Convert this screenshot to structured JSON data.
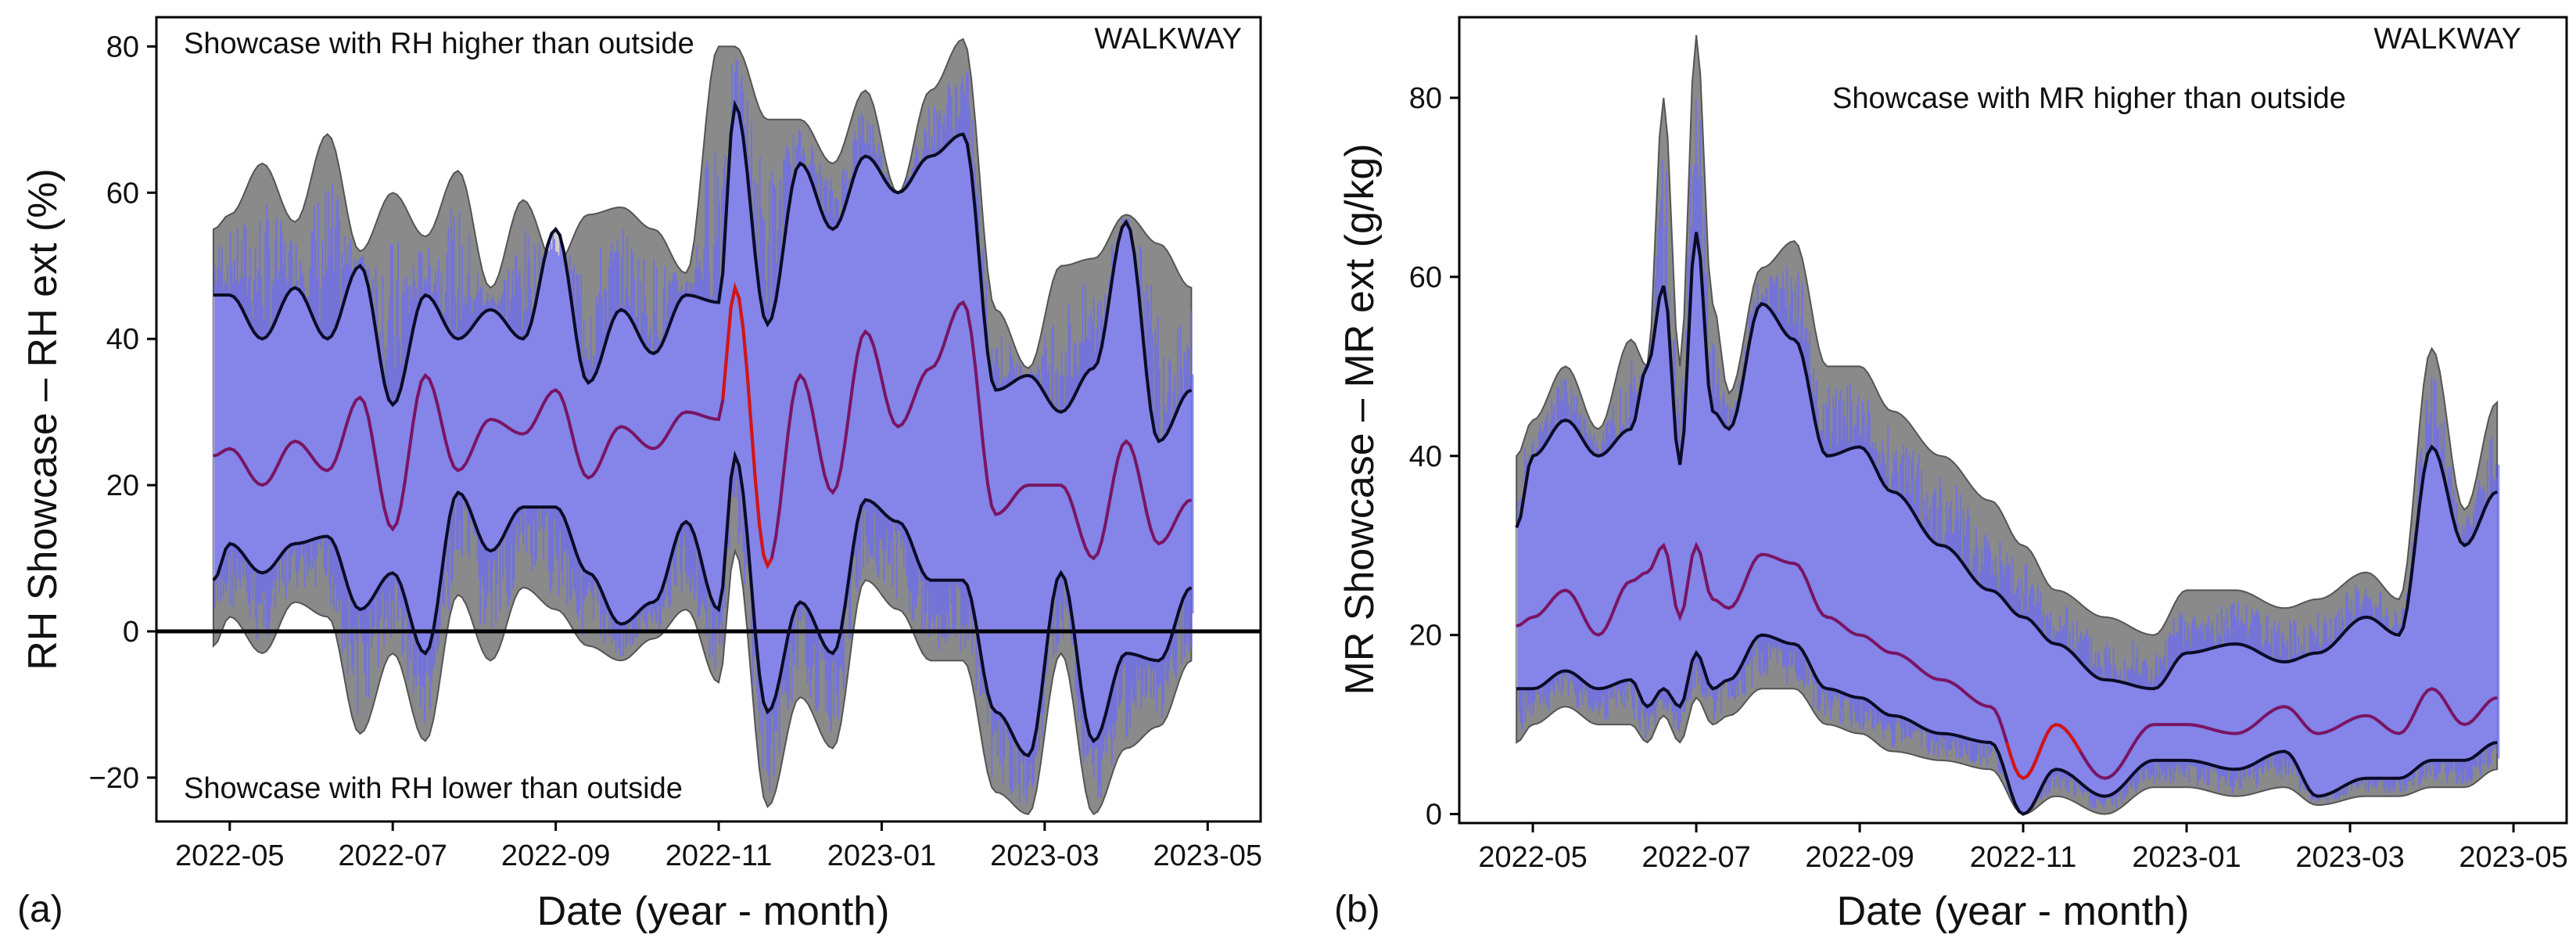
{
  "figure": {
    "colors": {
      "envelope": "#8a8a8a",
      "envelope_edge": "#555555",
      "inner_band": "#d0d0d0",
      "raw": "#6b6bf2",
      "bound_lines": "#0b0b26",
      "mean_line": "#7a1462",
      "mean_highlight": "#d41414",
      "zero_line": "#000000",
      "frame": "#000000"
    }
  },
  "chart_data": [
    {
      "panel": "(a)",
      "type": "line",
      "title": "",
      "xlabel": "Date (year - month)",
      "ylabel": "RH Showcase – RH ext (%)",
      "xlim": [
        -0.9,
        12.65
      ],
      "ylim": [
        -26,
        84
      ],
      "x_ticks": [
        0,
        2,
        4,
        6,
        8,
        10,
        12
      ],
      "x_tick_labels": [
        "2022-05",
        "2022-07",
        "2022-09",
        "2022-11",
        "2023-01",
        "2023-03",
        "2023-05"
      ],
      "y_ticks": [
        -20,
        0,
        20,
        40,
        60,
        80
      ],
      "y_tick_labels": [
        "−20",
        "0",
        "20",
        "40",
        "60",
        "80"
      ],
      "x_units": "months since 2022-05-01",
      "reference_line_y": 0,
      "annotations": {
        "top_left": "Showcase with RH higher than outside",
        "top_right": "WALKWAY",
        "bottom_left": "Showcase with RH lower than outside"
      },
      "series": [
        {
          "name": "upper envelope",
          "x": [
            -0.2,
            0.0,
            0.4,
            0.8,
            1.2,
            1.6,
            2.0,
            2.4,
            2.8,
            3.2,
            3.6,
            4.0,
            4.4,
            4.8,
            5.2,
            5.6,
            6.0,
            6.2,
            6.6,
            7.0,
            7.4,
            7.8,
            8.2,
            8.6,
            9.0,
            9.4,
            9.8,
            10.2,
            10.6,
            11.0,
            11.4,
            11.8
          ],
          "values": [
            55,
            57,
            64,
            56,
            68,
            52,
            60,
            54,
            63,
            47,
            59,
            50,
            57,
            58,
            55,
            49,
            80,
            80,
            70,
            70,
            64,
            74,
            60,
            74,
            81,
            44,
            36,
            50,
            51,
            57,
            53,
            47
          ]
        },
        {
          "name": "upper bound",
          "x": [
            -0.2,
            0.0,
            0.4,
            0.8,
            1.2,
            1.6,
            2.0,
            2.4,
            2.8,
            3.2,
            3.6,
            4.0,
            4.4,
            4.8,
            5.2,
            5.6,
            6.0,
            6.2,
            6.6,
            7.0,
            7.4,
            7.8,
            8.2,
            8.6,
            9.0,
            9.4,
            9.8,
            10.2,
            10.6,
            11.0,
            11.4,
            11.8
          ],
          "values": [
            46,
            46,
            40,
            47,
            40,
            50,
            31,
            46,
            40,
            44,
            40,
            55,
            34,
            44,
            38,
            46,
            45,
            72,
            42,
            64,
            55,
            65,
            60,
            65,
            68,
            33,
            35,
            30,
            36,
            56,
            26,
            33
          ]
        },
        {
          "name": "mean",
          "x": [
            -0.2,
            0.0,
            0.4,
            0.8,
            1.2,
            1.6,
            2.0,
            2.4,
            2.8,
            3.2,
            3.6,
            4.0,
            4.4,
            4.8,
            5.2,
            5.6,
            6.0,
            6.2,
            6.6,
            7.0,
            7.4,
            7.8,
            8.2,
            8.6,
            9.0,
            9.4,
            9.8,
            10.2,
            10.6,
            11.0,
            11.4,
            11.8
          ],
          "values": [
            24,
            25,
            20,
            26,
            22,
            32,
            14,
            35,
            22,
            29,
            27,
            33,
            21,
            28,
            25,
            30,
            29,
            47,
            9,
            35,
            19,
            41,
            28,
            36,
            45,
            16,
            20,
            20,
            10,
            26,
            12,
            18
          ]
        },
        {
          "name": "lower bound",
          "x": [
            -0.2,
            0.0,
            0.4,
            0.8,
            1.2,
            1.6,
            2.0,
            2.4,
            2.8,
            3.2,
            3.6,
            4.0,
            4.4,
            4.8,
            5.2,
            5.6,
            6.0,
            6.2,
            6.6,
            7.0,
            7.4,
            7.8,
            8.2,
            8.6,
            9.0,
            9.4,
            9.8,
            10.2,
            10.6,
            11.0,
            11.4,
            11.8
          ],
          "values": [
            7,
            12,
            8,
            12,
            13,
            3,
            8,
            -3,
            19,
            11,
            17,
            17,
            8,
            1,
            4,
            15,
            3,
            24,
            -11,
            4,
            -3,
            18,
            15,
            7,
            7,
            -11,
            -17,
            8,
            -15,
            -3,
            -4,
            6
          ]
        },
        {
          "name": "lower envelope",
          "x": [
            -0.2,
            0.0,
            0.4,
            0.8,
            1.2,
            1.6,
            2.0,
            2.4,
            2.8,
            3.2,
            3.6,
            4.0,
            4.4,
            4.8,
            5.2,
            5.6,
            6.0,
            6.2,
            6.6,
            7.0,
            7.4,
            7.8,
            8.2,
            8.6,
            9.0,
            9.4,
            9.8,
            10.2,
            10.6,
            11.0,
            11.4,
            11.8
          ],
          "values": [
            -2,
            2,
            -3,
            4,
            2,
            -14,
            -3,
            -15,
            5,
            -4,
            6,
            3,
            -2,
            -4,
            -1,
            3,
            -7,
            11,
            -24,
            -9,
            -16,
            7,
            3,
            -4,
            -4,
            -22,
            -25,
            -3,
            -25,
            -16,
            -13,
            -4
          ]
        }
      ]
    },
    {
      "panel": "(b)",
      "type": "line",
      "title": "",
      "xlabel": "Date (year - month)",
      "ylabel": "MR Showcase – MR ext (g/kg)",
      "xlim": [
        -0.9,
        12.65
      ],
      "ylim": [
        -1,
        89
      ],
      "x_ticks": [
        0,
        2,
        4,
        6,
        8,
        10,
        12
      ],
      "x_tick_labels": [
        "2022-05",
        "2022-07",
        "2022-09",
        "2022-11",
        "2023-01",
        "2023-03",
        "2023-05"
      ],
      "y_ticks": [
        0,
        20,
        40,
        60,
        80
      ],
      "y_tick_labels": [
        "0",
        "20",
        "40",
        "60",
        "80"
      ],
      "x_units": "months since 2022-05-01",
      "annotations": {
        "top_right": "WALKWAY",
        "top_center": "Showcase with MR higher than outside"
      },
      "series": [
        {
          "name": "upper envelope",
          "x": [
            -0.2,
            0.0,
            0.4,
            0.8,
            1.2,
            1.4,
            1.6,
            1.8,
            2.0,
            2.2,
            2.4,
            2.8,
            3.2,
            3.6,
            4.0,
            4.4,
            5.0,
            5.6,
            6.0,
            6.4,
            7.0,
            7.6,
            8.0,
            8.6,
            9.2,
            9.6,
            10.2,
            10.6,
            11.0,
            11.4,
            11.8
          ],
          "values": [
            40,
            44,
            50,
            43,
            53,
            50,
            80,
            50,
            87,
            57,
            47,
            61,
            64,
            50,
            50,
            45,
            40,
            35,
            30,
            25,
            22,
            20,
            25,
            25,
            23,
            24,
            27,
            24,
            52,
            34,
            46
          ]
        },
        {
          "name": "upper bound",
          "x": [
            -0.2,
            0.0,
            0.4,
            0.8,
            1.2,
            1.4,
            1.6,
            1.8,
            2.0,
            2.2,
            2.4,
            2.8,
            3.2,
            3.6,
            4.0,
            4.4,
            5.0,
            5.6,
            6.0,
            6.4,
            7.0,
            7.6,
            8.0,
            8.6,
            9.2,
            9.6,
            10.2,
            10.6,
            11.0,
            11.4,
            11.8
          ],
          "values": [
            32,
            40,
            44,
            40,
            43,
            50,
            59,
            39,
            65,
            45,
            43,
            57,
            53,
            40,
            41,
            36,
            30,
            25,
            22,
            19,
            15,
            14,
            18,
            19,
            17,
            18,
            22,
            20,
            41,
            30,
            36
          ]
        },
        {
          "name": "mean",
          "x": [
            -0.2,
            0.0,
            0.4,
            0.8,
            1.2,
            1.4,
            1.6,
            1.8,
            2.0,
            2.2,
            2.4,
            2.8,
            3.2,
            3.6,
            4.0,
            4.4,
            5.0,
            5.6,
            6.0,
            6.4,
            7.0,
            7.6,
            8.0,
            8.6,
            9.2,
            9.6,
            10.2,
            10.6,
            11.0,
            11.4,
            11.8
          ],
          "values": [
            21,
            22,
            25,
            20,
            26,
            27,
            30,
            22,
            30,
            24,
            23,
            29,
            28,
            22,
            20,
            18,
            15,
            12,
            4,
            10,
            4,
            10,
            10,
            9,
            12,
            9,
            11,
            9,
            14,
            10,
            13
          ]
        },
        {
          "name": "lower bound",
          "x": [
            -0.2,
            0.0,
            0.4,
            0.8,
            1.2,
            1.4,
            1.6,
            1.8,
            2.0,
            2.2,
            2.4,
            2.8,
            3.2,
            3.6,
            4.0,
            4.4,
            5.0,
            5.6,
            6.0,
            6.4,
            7.0,
            7.6,
            8.0,
            8.6,
            9.2,
            9.6,
            10.2,
            10.6,
            11.0,
            11.4,
            11.8
          ],
          "values": [
            14,
            14,
            16,
            14,
            15,
            12,
            14,
            12,
            18,
            14,
            15,
            20,
            19,
            14,
            13,
            11,
            9,
            8,
            0,
            5,
            2,
            6,
            6,
            5,
            7,
            2,
            4,
            4,
            6,
            6,
            8
          ]
        },
        {
          "name": "lower envelope",
          "x": [
            -0.2,
            0.0,
            0.4,
            0.8,
            1.2,
            1.4,
            1.6,
            1.8,
            2.0,
            2.2,
            2.4,
            2.8,
            3.2,
            3.6,
            4.0,
            4.4,
            5.0,
            5.6,
            6.0,
            6.4,
            7.0,
            7.6,
            8.0,
            8.6,
            9.2,
            9.6,
            10.2,
            10.6,
            11.0,
            11.4,
            11.8
          ],
          "values": [
            8,
            10,
            12,
            10,
            10,
            8,
            11,
            8,
            13,
            10,
            11,
            14,
            14,
            10,
            9,
            7,
            6,
            5,
            0,
            2,
            0,
            3,
            3,
            2,
            3,
            1,
            2,
            2,
            3,
            3,
            5
          ]
        }
      ]
    }
  ]
}
